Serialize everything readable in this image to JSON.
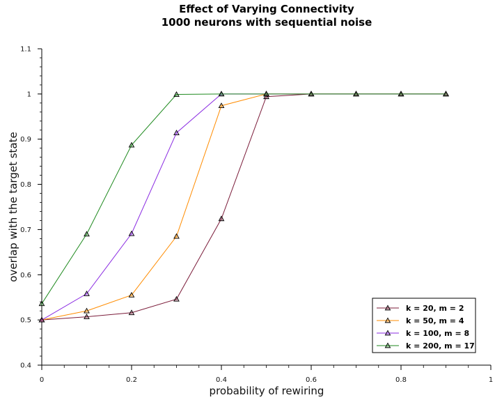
{
  "chart_data": {
    "type": "line",
    "title": "Effect of Varying Connectivity",
    "subtitle": "1000 neurons with sequential noise",
    "xlabel": "probability of rewiring",
    "ylabel": "overlap with the target state",
    "xlim": [
      0,
      1
    ],
    "ylim": [
      0.4,
      1.1
    ],
    "xticks": [
      "0",
      "0.2",
      "0.4",
      "0.6",
      "0.8",
      "1"
    ],
    "xtick_values": [
      0,
      0.2,
      0.4,
      0.6,
      0.8,
      1.0
    ],
    "yticks": [
      "0.4",
      "0.5",
      "0.6",
      "0.7",
      "0.8",
      "0.9",
      "1",
      "1.1"
    ],
    "ytick_values": [
      0.4,
      0.5,
      0.6,
      0.7,
      0.8,
      0.9,
      1.0,
      1.1
    ],
    "grid": false,
    "legend_position": "bottom-right",
    "marker": "triangle",
    "x": [
      0,
      0.1,
      0.2,
      0.3,
      0.4,
      0.5,
      0.6,
      0.7,
      0.8,
      0.9
    ],
    "series": [
      {
        "name": "k = 20, m = 2",
        "color": "#7b1c3a",
        "values": [
          0.5,
          0.507,
          0.516,
          0.546,
          0.724,
          0.994,
          1.0,
          1.0,
          1.0,
          1.0
        ]
      },
      {
        "name": "k = 50, m = 4",
        "color": "#ff8c00",
        "values": [
          0.5,
          0.52,
          0.555,
          0.685,
          0.974,
          1.0,
          1.0,
          1.0,
          1.0,
          1.0
        ]
      },
      {
        "name": "k = 100, m = 8",
        "color": "#8a2be2",
        "values": [
          0.5,
          0.558,
          0.691,
          0.914,
          1.0,
          1.0,
          1.0,
          1.0,
          1.0,
          1.0
        ]
      },
      {
        "name": "k = 200, m = 17",
        "color": "#1f8a1f",
        "values": [
          0.536,
          0.69,
          0.887,
          0.999,
          1.0,
          1.0,
          1.0,
          1.0,
          1.0,
          1.0
        ]
      }
    ]
  }
}
